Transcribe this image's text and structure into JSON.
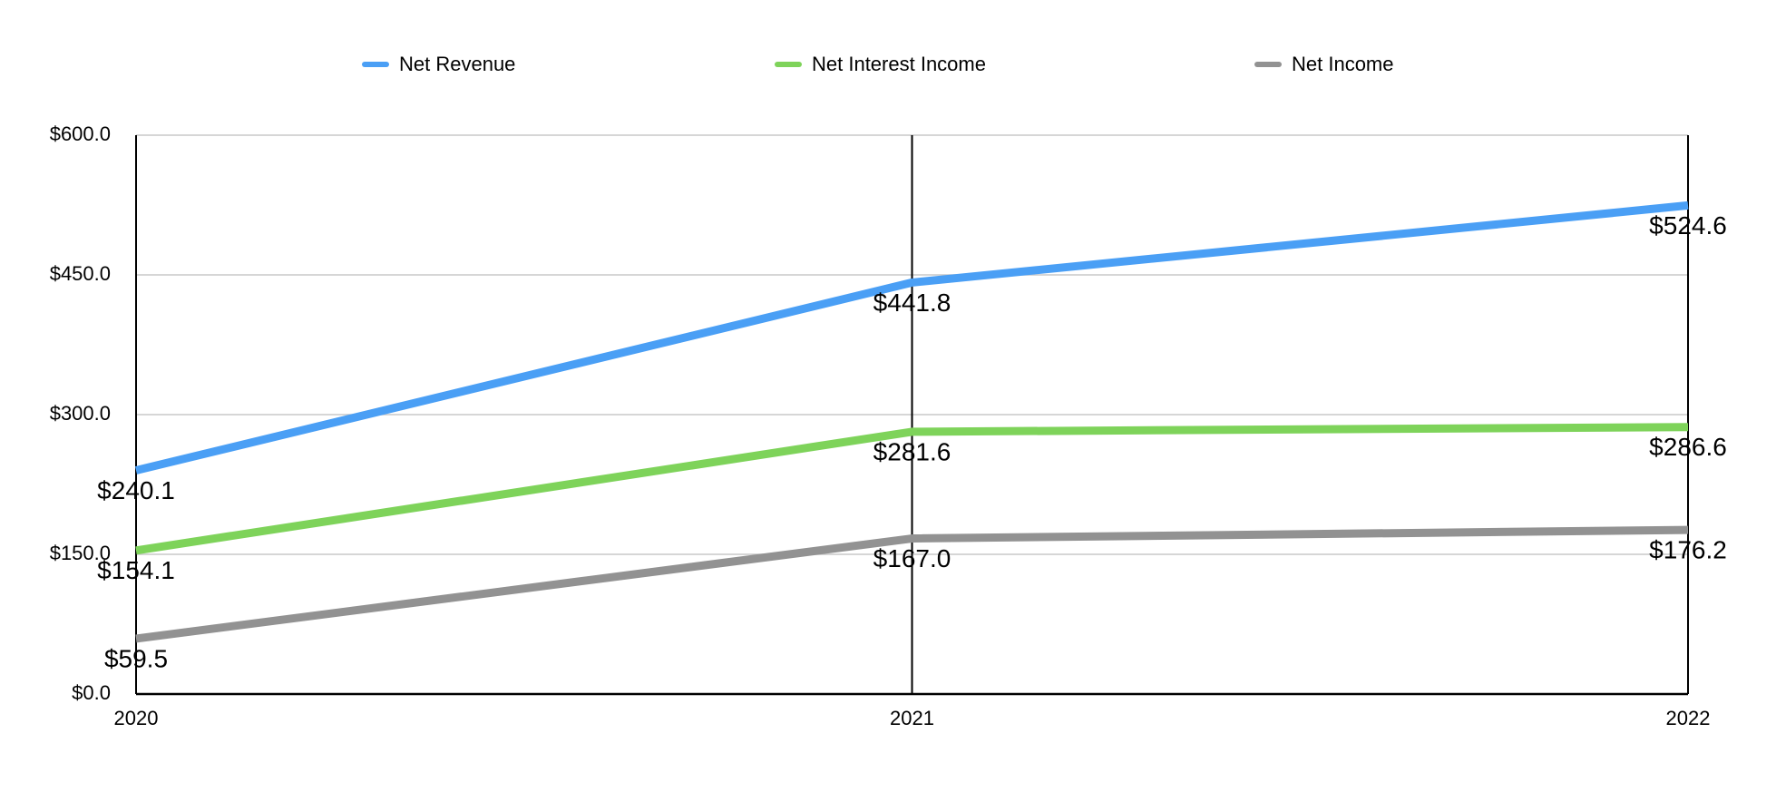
{
  "chart_data": {
    "type": "line",
    "categories": [
      "2020",
      "2021",
      "2022"
    ],
    "series": [
      {
        "name": "Net Revenue",
        "color": "#4a9ff5",
        "values": [
          240.1,
          441.8,
          524.6
        ],
        "value_labels": [
          "$240.1",
          "$441.8",
          "$524.6"
        ]
      },
      {
        "name": "Net Interest Income",
        "color": "#7ed35a",
        "values": [
          154.1,
          281.6,
          286.6
        ],
        "value_labels": [
          "$154.1",
          "$281.6",
          "$286.6"
        ]
      },
      {
        "name": "Net Income",
        "color": "#929292",
        "values": [
          59.5,
          167.0,
          176.2
        ],
        "value_labels": [
          "$59.5",
          "$167.0",
          "$176.2"
        ]
      }
    ],
    "ylim": [
      0,
      600
    ],
    "yticks": [
      {
        "value": 0,
        "label": "$0.0"
      },
      {
        "value": 150,
        "label": "$150.0"
      },
      {
        "value": 300,
        "label": "$300.0"
      },
      {
        "value": 450,
        "label": "$450.0"
      },
      {
        "value": 600,
        "label": "$600.0"
      }
    ],
    "grid": true,
    "legend": "top"
  }
}
